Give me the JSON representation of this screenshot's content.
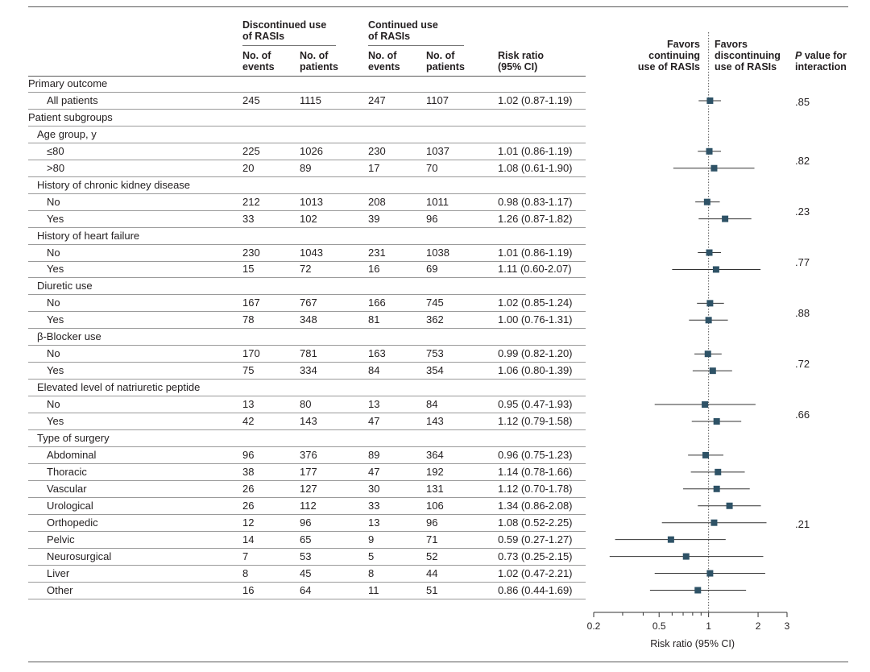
{
  "header": {
    "group_discontinued": [
      "Discontinued use",
      "of RASIs"
    ],
    "group_continued": [
      "Continued use",
      "of RASIs"
    ],
    "col_events": [
      "No. of",
      "events"
    ],
    "col_patients": [
      "No. of",
      "patients"
    ],
    "col_rr": [
      "Risk ratio",
      "(95% CI)"
    ],
    "favors_continuing": [
      "Favors",
      "continuing",
      "use of RASIs"
    ],
    "favors_discontinuing": [
      "Favors",
      "discontinuing",
      "use of RASIs"
    ],
    "pvalue_p": "P",
    "pvalue_rest": [
      " value for",
      "interaction"
    ]
  },
  "rows": [
    {
      "label": "Primary outcome",
      "type": "section"
    },
    {
      "label": "All patients",
      "type": "data",
      "de": "245",
      "dp": "1115",
      "ce": "247",
      "cp": "1107",
      "rr": "1.02 (0.87-1.19)"
    },
    {
      "label": "Patient subgroups",
      "type": "section"
    },
    {
      "label": "Age group, y",
      "type": "group"
    },
    {
      "label": "≤80",
      "type": "data",
      "de": "225",
      "dp": "1026",
      "ce": "230",
      "cp": "1037",
      "rr": "1.01 (0.86-1.19)"
    },
    {
      "label": ">80",
      "type": "data",
      "de": "20",
      "dp": "89",
      "ce": "17",
      "cp": "70",
      "rr": "1.08 (0.61-1.90)"
    },
    {
      "label": "History of chronic kidney disease",
      "type": "group"
    },
    {
      "label": "No",
      "type": "data",
      "de": "212",
      "dp": "1013",
      "ce": "208",
      "cp": "1011",
      "rr": "0.98 (0.83-1.17)"
    },
    {
      "label": "Yes",
      "type": "data",
      "de": "33",
      "dp": "102",
      "ce": "39",
      "cp": "96",
      "rr": "1.26 (0.87-1.82)"
    },
    {
      "label": "History of heart failure",
      "type": "group"
    },
    {
      "label": "No",
      "type": "data",
      "de": "230",
      "dp": "1043",
      "ce": "231",
      "cp": "1038",
      "rr": "1.01 (0.86-1.19)"
    },
    {
      "label": "Yes",
      "type": "data",
      "de": "15",
      "dp": "72",
      "ce": "16",
      "cp": "69",
      "rr": "1.11 (0.60-2.07)"
    },
    {
      "label": "Diuretic use",
      "type": "group"
    },
    {
      "label": "No",
      "type": "data",
      "de": "167",
      "dp": "767",
      "ce": "166",
      "cp": "745",
      "rr": "1.02 (0.85-1.24)"
    },
    {
      "label": "Yes",
      "type": "data",
      "de": "78",
      "dp": "348",
      "ce": "81",
      "cp": "362",
      "rr": "1.00 (0.76-1.31)"
    },
    {
      "label": "β-Blocker use",
      "type": "group"
    },
    {
      "label": "No",
      "type": "data",
      "de": "170",
      "dp": "781",
      "ce": "163",
      "cp": "753",
      "rr": "0.99 (0.82-1.20)"
    },
    {
      "label": "Yes",
      "type": "data",
      "de": "75",
      "dp": "334",
      "ce": "84",
      "cp": "354",
      "rr": "1.06 (0.80-1.39)"
    },
    {
      "label": "Elevated level of natriuretic peptide",
      "type": "group"
    },
    {
      "label": "No",
      "type": "data",
      "de": "13",
      "dp": "80",
      "ce": "13",
      "cp": "84",
      "rr": "0.95 (0.47-1.93)"
    },
    {
      "label": "Yes",
      "type": "data",
      "de": "42",
      "dp": "143",
      "ce": "47",
      "cp": "143",
      "rr": "1.12 (0.79-1.58)"
    },
    {
      "label": "Type of surgery",
      "type": "group"
    },
    {
      "label": "Abdominal",
      "type": "data",
      "de": "96",
      "dp": "376",
      "ce": "89",
      "cp": "364",
      "rr": "0.96 (0.75-1.23)"
    },
    {
      "label": "Thoracic",
      "type": "data",
      "de": "38",
      "dp": "177",
      "ce": "47",
      "cp": "192",
      "rr": "1.14 (0.78-1.66)"
    },
    {
      "label": "Vascular",
      "type": "data",
      "de": "26",
      "dp": "127",
      "ce": "30",
      "cp": "131",
      "rr": "1.12 (0.70-1.78)"
    },
    {
      "label": "Urological",
      "type": "data",
      "de": "26",
      "dp": "112",
      "ce": "33",
      "cp": "106",
      "rr": "1.34 (0.86-2.08)"
    },
    {
      "label": "Orthopedic",
      "type": "data",
      "de": "12",
      "dp": "96",
      "ce": "13",
      "cp": "96",
      "rr": "1.08 (0.52-2.25)"
    },
    {
      "label": "Pelvic",
      "type": "data",
      "de": "14",
      "dp": "65",
      "ce": "9",
      "cp": "71",
      "rr": "0.59 (0.27-1.27)"
    },
    {
      "label": "Neurosurgical",
      "type": "data",
      "de": "7",
      "dp": "53",
      "ce": "5",
      "cp": "52",
      "rr": "0.73 (0.25-2.15)"
    },
    {
      "label": "Liver",
      "type": "data",
      "de": "8",
      "dp": "45",
      "ce": "8",
      "cp": "44",
      "rr": "1.02 (0.47-2.21)"
    },
    {
      "label": "Other",
      "type": "data",
      "de": "16",
      "dp": "64",
      "ce": "11",
      "cp": "51",
      "rr": "0.86 (0.44-1.69)"
    }
  ],
  "pvalues": [
    {
      "value": ".85",
      "rows": [
        1
      ]
    },
    {
      "value": ".82",
      "rows": [
        4,
        5
      ]
    },
    {
      "value": ".23",
      "rows": [
        7,
        8
      ]
    },
    {
      "value": ".77",
      "rows": [
        10,
        11
      ]
    },
    {
      "value": ".88",
      "rows": [
        13,
        14
      ]
    },
    {
      "value": ".72",
      "rows": [
        16,
        17
      ]
    },
    {
      "value": ".66",
      "rows": [
        19,
        20
      ]
    },
    {
      "value": ".21",
      "rows": [
        22,
        30
      ]
    }
  ],
  "chart_data": {
    "type": "forest",
    "xscale": "log",
    "xlim": [
      0.2,
      3
    ],
    "xticks": [
      {
        "value": 0.2,
        "label": "0.2"
      },
      {
        "value": 0.5,
        "label": "0.5"
      },
      {
        "value": 1,
        "label": "1"
      },
      {
        "value": 2,
        "label": "2"
      },
      {
        "value": 3,
        "label": "3"
      }
    ],
    "minor_ticks": [
      0.3,
      0.4,
      0.6,
      0.7,
      0.8,
      0.9
    ],
    "xlabel": "Risk ratio (95% CI)",
    "reference_line": 1,
    "points": [
      {
        "row": 1,
        "rr": 1.02,
        "lo": 0.87,
        "hi": 1.19
      },
      {
        "row": 4,
        "rr": 1.01,
        "lo": 0.86,
        "hi": 1.19
      },
      {
        "row": 5,
        "rr": 1.08,
        "lo": 0.61,
        "hi": 1.9
      },
      {
        "row": 7,
        "rr": 0.98,
        "lo": 0.83,
        "hi": 1.17
      },
      {
        "row": 8,
        "rr": 1.26,
        "lo": 0.87,
        "hi": 1.82
      },
      {
        "row": 10,
        "rr": 1.01,
        "lo": 0.86,
        "hi": 1.19
      },
      {
        "row": 11,
        "rr": 1.11,
        "lo": 0.6,
        "hi": 2.07
      },
      {
        "row": 13,
        "rr": 1.02,
        "lo": 0.85,
        "hi": 1.24
      },
      {
        "row": 14,
        "rr": 1.0,
        "lo": 0.76,
        "hi": 1.31
      },
      {
        "row": 16,
        "rr": 0.99,
        "lo": 0.82,
        "hi": 1.2
      },
      {
        "row": 17,
        "rr": 1.06,
        "lo": 0.8,
        "hi": 1.39
      },
      {
        "row": 19,
        "rr": 0.95,
        "lo": 0.47,
        "hi": 1.93
      },
      {
        "row": 20,
        "rr": 1.12,
        "lo": 0.79,
        "hi": 1.58
      },
      {
        "row": 22,
        "rr": 0.96,
        "lo": 0.75,
        "hi": 1.23
      },
      {
        "row": 23,
        "rr": 1.14,
        "lo": 0.78,
        "hi": 1.66
      },
      {
        "row": 24,
        "rr": 1.12,
        "lo": 0.7,
        "hi": 1.78
      },
      {
        "row": 25,
        "rr": 1.34,
        "lo": 0.86,
        "hi": 2.08
      },
      {
        "row": 26,
        "rr": 1.08,
        "lo": 0.52,
        "hi": 2.25
      },
      {
        "row": 27,
        "rr": 0.59,
        "lo": 0.27,
        "hi": 1.27
      },
      {
        "row": 28,
        "rr": 0.73,
        "lo": 0.25,
        "hi": 2.15
      },
      {
        "row": 29,
        "rr": 1.02,
        "lo": 0.47,
        "hi": 2.21
      },
      {
        "row": 30,
        "rr": 0.86,
        "lo": 0.44,
        "hi": 1.69
      }
    ]
  },
  "colors": {
    "marker": "#2e5266",
    "line": "#333333",
    "text": "#231f20"
  }
}
